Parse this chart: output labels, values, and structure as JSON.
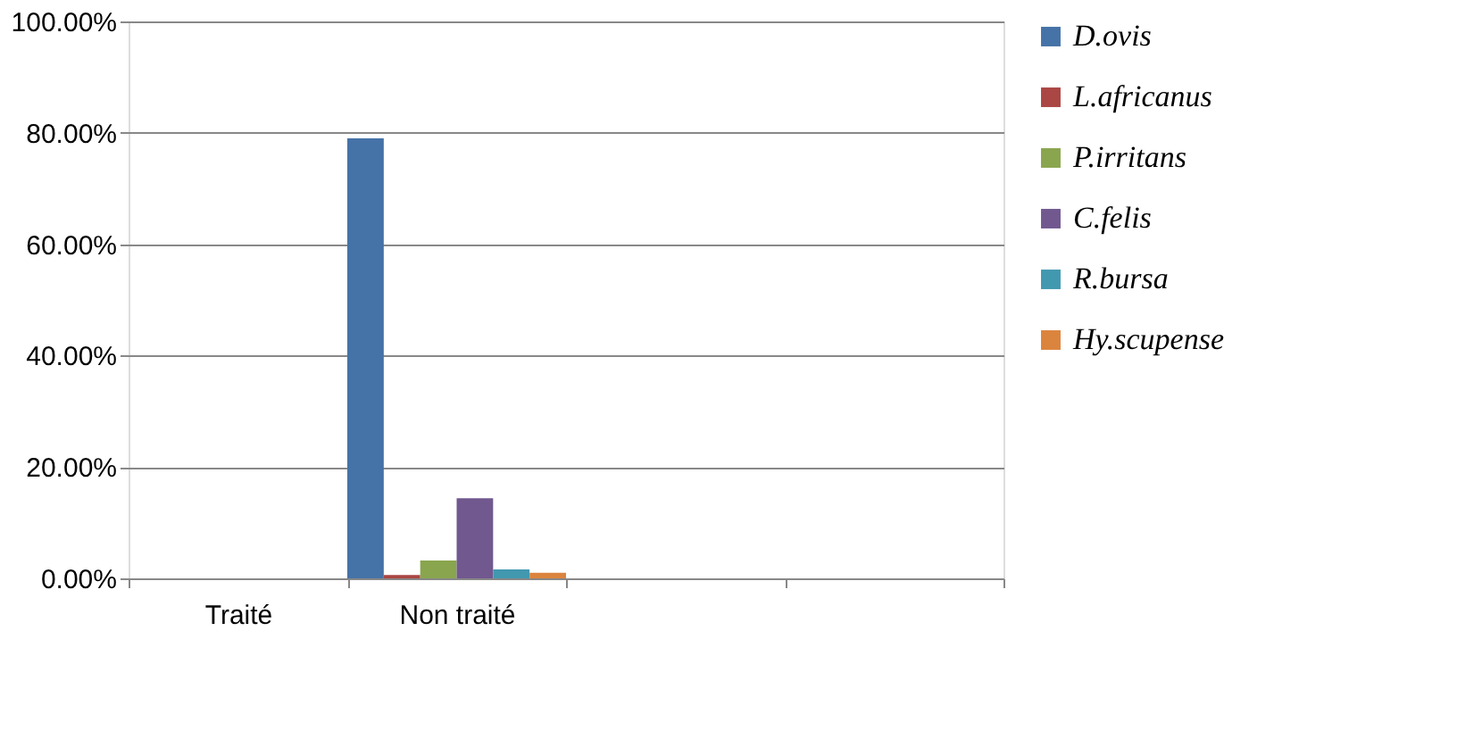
{
  "chart_data": {
    "type": "bar",
    "categories": [
      "Traité",
      "Non traité",
      null,
      null
    ],
    "series": [
      {
        "name": "D.ovis",
        "color": "#4572a7",
        "values": [
          null,
          79,
          null,
          null
        ]
      },
      {
        "name": "L.africanus",
        "color": "#aa4643",
        "values": [
          null,
          0.6,
          null,
          null
        ]
      },
      {
        "name": "P.irritans",
        "color": "#89a54e",
        "values": [
          null,
          3.2,
          null,
          null
        ]
      },
      {
        "name": "C.felis",
        "color": "#71588f",
        "values": [
          null,
          14.4,
          null,
          null
        ]
      },
      {
        "name": "R.bursa",
        "color": "#4198af",
        "values": [
          null,
          1.6,
          null,
          null
        ]
      },
      {
        "name": "Hy.scupense",
        "color": "#db843d",
        "values": [
          null,
          1,
          null,
          null
        ]
      }
    ],
    "ylim": [
      0,
      100
    ],
    "yticks": [
      {
        "value": 0,
        "label": "0.00%"
      },
      {
        "value": 20,
        "label": "20.00%"
      },
      {
        "value": 40,
        "label": "40.00%"
      },
      {
        "value": 60,
        "label": "60.00%"
      },
      {
        "value": 80,
        "label": "80.00%"
      },
      {
        "value": 100,
        "label": "100.00%"
      }
    ],
    "grid": "y",
    "legend": "right"
  }
}
